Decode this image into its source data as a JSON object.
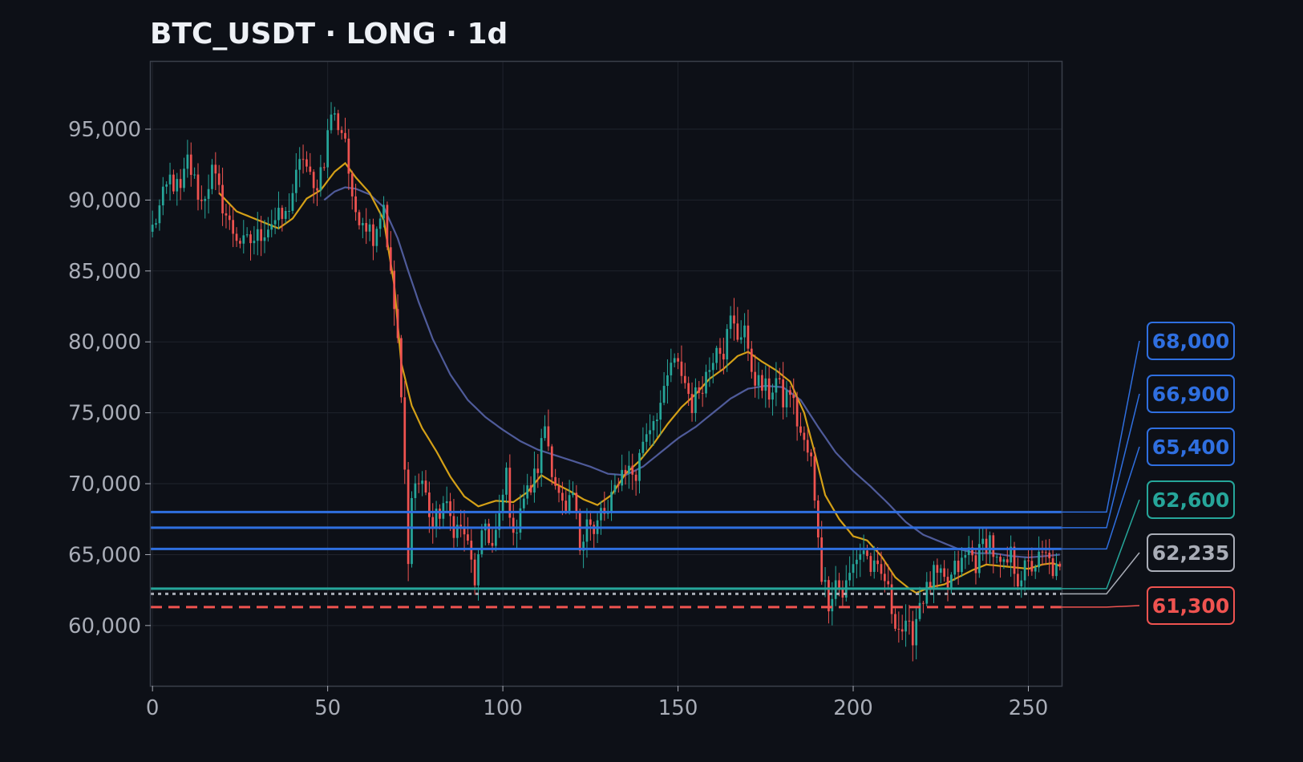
{
  "chart_data": {
    "type": "candlestick",
    "title": "BTC_USDT · LONG · 1d",
    "xlim": [
      -0.5,
      259.5
    ],
    "ylim": [
      55750,
      99750
    ],
    "x_ticks": [
      0,
      50,
      100,
      150,
      200,
      250
    ],
    "x_tick_labels": [
      "0",
      "50",
      "100",
      "150",
      "200",
      "250"
    ],
    "y_ticks": [
      60000,
      65000,
      70000,
      75000,
      80000,
      85000,
      90000,
      95000
    ],
    "y_tick_labels": [
      "60,000",
      "65,000",
      "70,000",
      "75,000",
      "80,000",
      "85,000",
      "90,000",
      "95,000"
    ],
    "grid": true,
    "colors": {
      "background": "#0d1017",
      "up": "#26a69a",
      "down": "#ef5350",
      "fast_ma": "#d4a017",
      "slow_ma": "#4f5b9a",
      "level_blue": "#2f6fe0",
      "level_teal": "#26a69a",
      "level_gray": "#a9adb7",
      "level_red": "#ef5350"
    },
    "price_path": [
      [
        0,
        88000
      ],
      [
        5,
        91500
      ],
      [
        8,
        90500
      ],
      [
        10,
        92800
      ],
      [
        14,
        89800
      ],
      [
        17,
        92000
      ],
      [
        22,
        88200
      ],
      [
        26,
        86800
      ],
      [
        30,
        87400
      ],
      [
        34,
        88500
      ],
      [
        38,
        88800
      ],
      [
        41,
        91500
      ],
      [
        43,
        93200
      ],
      [
        46,
        90500
      ],
      [
        49,
        93000
      ],
      [
        51,
        96200
      ],
      [
        55,
        94500
      ],
      [
        57,
        89500
      ],
      [
        60,
        88800
      ],
      [
        63,
        87600
      ],
      [
        66,
        89800
      ],
      [
        68,
        84500
      ],
      [
        70,
        80200
      ],
      [
        71,
        75500
      ],
      [
        72,
        70800
      ],
      [
        73,
        64000
      ],
      [
        74,
        69800
      ],
      [
        77,
        70200
      ],
      [
        80,
        66900
      ],
      [
        83,
        68600
      ],
      [
        86,
        67000
      ],
      [
        89,
        66600
      ],
      [
        92,
        63200
      ],
      [
        95,
        67200
      ],
      [
        97,
        65500
      ],
      [
        99,
        67400
      ],
      [
        101,
        70800
      ],
      [
        103,
        65800
      ],
      [
        105,
        68700
      ],
      [
        108,
        69700
      ],
      [
        110,
        71200
      ],
      [
        112,
        74200
      ],
      [
        114,
        71300
      ],
      [
        116,
        69000
      ],
      [
        118,
        67500
      ],
      [
        120,
        69200
      ],
      [
        122,
        65600
      ],
      [
        124,
        67900
      ],
      [
        126,
        66200
      ],
      [
        128,
        68000
      ],
      [
        130,
        67800
      ],
      [
        133,
        70500
      ],
      [
        135,
        71200
      ],
      [
        138,
        70500
      ],
      [
        140,
        73200
      ],
      [
        143,
        74700
      ],
      [
        146,
        76100
      ],
      [
        148,
        78500
      ],
      [
        151,
        77900
      ],
      [
        154,
        75600
      ],
      [
        157,
        77200
      ],
      [
        159,
        78200
      ],
      [
        161,
        80200
      ],
      [
        163,
        79400
      ],
      [
        165,
        81500
      ],
      [
        167,
        80400
      ],
      [
        169,
        81200
      ],
      [
        170,
        78800
      ],
      [
        173,
        77000
      ],
      [
        176,
        76400
      ],
      [
        178,
        77300
      ],
      [
        180,
        75800
      ],
      [
        182,
        76600
      ],
      [
        184,
        74400
      ],
      [
        186,
        72700
      ],
      [
        188,
        71600
      ],
      [
        189,
        68500
      ],
      [
        190,
        66600
      ],
      [
        191,
        63700
      ],
      [
        193,
        61800
      ],
      [
        195,
        63200
      ],
      [
        197,
        62200
      ],
      [
        199,
        63500
      ],
      [
        201,
        64900
      ],
      [
        203,
        65400
      ],
      [
        205,
        64100
      ],
      [
        207,
        63600
      ],
      [
        209,
        63300
      ],
      [
        211,
        61200
      ],
      [
        213,
        59900
      ],
      [
        215,
        59600
      ],
      [
        217,
        59400
      ],
      [
        219,
        61800
      ],
      [
        221,
        62400
      ],
      [
        223,
        63500
      ],
      [
        225,
        63200
      ],
      [
        227,
        62700
      ],
      [
        229,
        63900
      ],
      [
        231,
        64300
      ],
      [
        233,
        65300
      ],
      [
        235,
        64400
      ],
      [
        237,
        65700
      ],
      [
        239,
        66100
      ],
      [
        241,
        64300
      ],
      [
        243,
        63900
      ],
      [
        245,
        64900
      ],
      [
        247,
        63400
      ],
      [
        249,
        63900
      ],
      [
        251,
        64200
      ],
      [
        253,
        64600
      ],
      [
        255,
        64800
      ],
      [
        257,
        64000
      ],
      [
        259,
        63600
      ]
    ],
    "moving_averages": [
      {
        "kind": "fast",
        "start": 19,
        "points": [
          [
            19,
            90500
          ],
          [
            24,
            89200
          ],
          [
            28,
            88800
          ],
          [
            32,
            88400
          ],
          [
            36,
            88000
          ],
          [
            40,
            88700
          ],
          [
            44,
            90100
          ],
          [
            48,
            90700
          ],
          [
            52,
            92000
          ],
          [
            55,
            92600
          ],
          [
            58,
            91600
          ],
          [
            62,
            90500
          ],
          [
            66,
            88600
          ],
          [
            69,
            84000
          ],
          [
            71,
            78500
          ],
          [
            74,
            75500
          ],
          [
            77,
            73900
          ],
          [
            81,
            72300
          ],
          [
            85,
            70500
          ],
          [
            89,
            69100
          ],
          [
            93,
            68400
          ],
          [
            98,
            68800
          ],
          [
            103,
            68700
          ],
          [
            107,
            69400
          ],
          [
            111,
            70600
          ],
          [
            115,
            70000
          ],
          [
            119,
            69500
          ],
          [
            123,
            68900
          ],
          [
            127,
            68500
          ],
          [
            131,
            69200
          ],
          [
            135,
            70700
          ],
          [
            139,
            71600
          ],
          [
            143,
            72800
          ],
          [
            147,
            74200
          ],
          [
            151,
            75400
          ],
          [
            155,
            76300
          ],
          [
            159,
            77400
          ],
          [
            163,
            78100
          ],
          [
            167,
            79000
          ],
          [
            170,
            79300
          ],
          [
            174,
            78600
          ],
          [
            178,
            78000
          ],
          [
            182,
            77200
          ],
          [
            186,
            75000
          ],
          [
            189,
            72200
          ],
          [
            192,
            69200
          ],
          [
            196,
            67500
          ],
          [
            200,
            66300
          ],
          [
            204,
            66000
          ],
          [
            208,
            64900
          ],
          [
            212,
            63400
          ],
          [
            216,
            62600
          ],
          [
            218,
            62300
          ],
          [
            222,
            62700
          ],
          [
            226,
            62900
          ],
          [
            230,
            63400
          ],
          [
            234,
            63900
          ],
          [
            238,
            64300
          ],
          [
            242,
            64200
          ],
          [
            246,
            64100
          ],
          [
            250,
            64000
          ],
          [
            254,
            64300
          ],
          [
            257,
            64400
          ],
          [
            259,
            64200
          ]
        ]
      },
      {
        "kind": "slow",
        "start": 49,
        "points": [
          [
            49,
            90000
          ],
          [
            52,
            90600
          ],
          [
            55,
            90900
          ],
          [
            58,
            90800
          ],
          [
            62,
            90400
          ],
          [
            66,
            89500
          ],
          [
            70,
            87300
          ],
          [
            73,
            85000
          ],
          [
            76,
            82800
          ],
          [
            80,
            80200
          ],
          [
            85,
            77700
          ],
          [
            90,
            75900
          ],
          [
            95,
            74700
          ],
          [
            100,
            73800
          ],
          [
            105,
            73000
          ],
          [
            110,
            72400
          ],
          [
            115,
            72000
          ],
          [
            120,
            71600
          ],
          [
            125,
            71200
          ],
          [
            130,
            70700
          ],
          [
            135,
            70600
          ],
          [
            140,
            71200
          ],
          [
            145,
            72200
          ],
          [
            150,
            73200
          ],
          [
            155,
            74000
          ],
          [
            160,
            75000
          ],
          [
            165,
            76000
          ],
          [
            170,
            76700
          ],
          [
            175,
            76900
          ],
          [
            180,
            76800
          ],
          [
            185,
            75900
          ],
          [
            190,
            74000
          ],
          [
            195,
            72200
          ],
          [
            200,
            70900
          ],
          [
            205,
            69800
          ],
          [
            210,
            68600
          ],
          [
            215,
            67300
          ],
          [
            220,
            66400
          ],
          [
            225,
            65900
          ],
          [
            230,
            65400
          ],
          [
            235,
            65100
          ],
          [
            240,
            65100
          ],
          [
            245,
            64900
          ],
          [
            250,
            64800
          ],
          [
            255,
            64900
          ],
          [
            259,
            65000
          ]
        ]
      }
    ],
    "levels": [
      {
        "value": 68000,
        "label": "68,000",
        "color": "#2f6fe0",
        "style": "solid"
      },
      {
        "value": 66900,
        "label": "66,900",
        "color": "#2f6fe0",
        "style": "solid"
      },
      {
        "value": 65400,
        "label": "65,400",
        "color": "#2f6fe0",
        "style": "solid"
      },
      {
        "value": 62600,
        "label": "62,600",
        "color": "#26a69a",
        "style": "solid"
      },
      {
        "value": 62235,
        "label": "62,235",
        "color": "#a9adb7",
        "style": "dotted"
      },
      {
        "value": 61300,
        "label": "61,300",
        "color": "#ef5350",
        "style": "dashed"
      }
    ]
  }
}
